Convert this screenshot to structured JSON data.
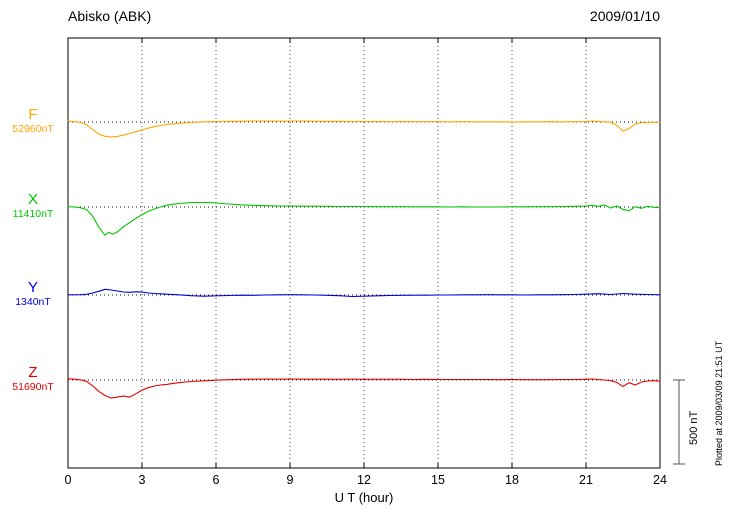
{
  "header": {
    "title": "Abisko (ABK)",
    "date": "2009/01/10"
  },
  "axis": {
    "xlabel": "U T (hour)"
  },
  "scale_bar": {
    "label": "500 nT"
  },
  "footer_note": "Plotted at 2009/03/09 21:51 UT",
  "chart_data": {
    "type": "line",
    "title": "Abisko (ABK)",
    "date": "2009/01/10",
    "xlabel": "U T (hour)",
    "xlim": [
      0,
      24
    ],
    "x_ticks": [
      0,
      3,
      6,
      9,
      12,
      15,
      18,
      21,
      24
    ],
    "grid": "dotted vertical lines every 3 hours; dotted horizontal baseline per channel",
    "legend_position": "left margin channel labels",
    "scale_bar_nT": 500,
    "y_unit": "nT offset from channel baseline",
    "series": [
      {
        "name": "F",
        "baseline_label": "52960nT",
        "baseline_nT": 52960,
        "color": "#FFA500",
        "points": [
          [
            0,
            4
          ],
          [
            0.25,
            3
          ],
          [
            0.5,
            -2
          ],
          [
            0.75,
            -15
          ],
          [
            1,
            -45
          ],
          [
            1.25,
            -72
          ],
          [
            1.5,
            -85
          ],
          [
            1.75,
            -90
          ],
          [
            2,
            -86
          ],
          [
            2.25,
            -78
          ],
          [
            2.5,
            -68
          ],
          [
            2.75,
            -58
          ],
          [
            3,
            -47
          ],
          [
            3.25,
            -37
          ],
          [
            3.5,
            -28
          ],
          [
            3.75,
            -21
          ],
          [
            4,
            -15
          ],
          [
            4.25,
            -11
          ],
          [
            4.5,
            -8
          ],
          [
            4.75,
            -5
          ],
          [
            5,
            -3
          ],
          [
            5.25,
            -1
          ],
          [
            5.5,
            1
          ],
          [
            6,
            3
          ],
          [
            6.5,
            4
          ],
          [
            7,
            5
          ],
          [
            7.5,
            6
          ],
          [
            8,
            6
          ],
          [
            8.5,
            5
          ],
          [
            9,
            6
          ],
          [
            9.5,
            6
          ],
          [
            10,
            5
          ],
          [
            10.5,
            4
          ],
          [
            11,
            4
          ],
          [
            11.5,
            3
          ],
          [
            12,
            3
          ],
          [
            12.5,
            3
          ],
          [
            13,
            2
          ],
          [
            13.5,
            3
          ],
          [
            14,
            2
          ],
          [
            14.5,
            2
          ],
          [
            15,
            2
          ],
          [
            15.5,
            1
          ],
          [
            16,
            2
          ],
          [
            16.5,
            1
          ],
          [
            17,
            1
          ],
          [
            17.5,
            1
          ],
          [
            18,
            0
          ],
          [
            18.5,
            1
          ],
          [
            19,
            1
          ],
          [
            19.5,
            2
          ],
          [
            20,
            1
          ],
          [
            20.5,
            2
          ],
          [
            21,
            3
          ],
          [
            21.25,
            6
          ],
          [
            21.5,
            4
          ],
          [
            21.75,
            1
          ],
          [
            22,
            -2
          ],
          [
            22.25,
            -20
          ],
          [
            22.5,
            -55
          ],
          [
            22.75,
            -38
          ],
          [
            23,
            -12
          ],
          [
            23.25,
            -4
          ],
          [
            23.5,
            -3
          ],
          [
            23.75,
            -1
          ],
          [
            24,
            -3
          ]
        ]
      },
      {
        "name": "X",
        "baseline_label": "11410nT",
        "baseline_nT": 11410,
        "color": "#00C800",
        "points": [
          [
            0,
            2
          ],
          [
            0.25,
            0
          ],
          [
            0.5,
            -4
          ],
          [
            0.75,
            -15
          ],
          [
            1,
            -55
          ],
          [
            1.25,
            -120
          ],
          [
            1.5,
            -168
          ],
          [
            1.65,
            -150
          ],
          [
            1.8,
            -162
          ],
          [
            2,
            -148
          ],
          [
            2.25,
            -118
          ],
          [
            2.5,
            -92
          ],
          [
            2.75,
            -68
          ],
          [
            3,
            -45
          ],
          [
            3.25,
            -26
          ],
          [
            3.5,
            -12
          ],
          [
            3.75,
            0
          ],
          [
            4,
            10
          ],
          [
            4.25,
            16
          ],
          [
            4.5,
            21
          ],
          [
            4.75,
            24
          ],
          [
            5,
            26
          ],
          [
            5.25,
            27
          ],
          [
            5.5,
            27
          ],
          [
            5.75,
            26
          ],
          [
            6,
            24
          ],
          [
            6.25,
            21
          ],
          [
            6.5,
            18
          ],
          [
            7,
            13
          ],
          [
            7.5,
            10
          ],
          [
            8,
            8
          ],
          [
            8.5,
            6
          ],
          [
            9,
            6
          ],
          [
            9.5,
            5
          ],
          [
            10,
            5
          ],
          [
            10.5,
            4
          ],
          [
            11,
            3
          ],
          [
            11.5,
            3
          ],
          [
            12,
            3
          ],
          [
            12.5,
            2
          ],
          [
            13,
            2
          ],
          [
            13.5,
            2
          ],
          [
            14,
            1
          ],
          [
            14.5,
            1
          ],
          [
            15,
            1
          ],
          [
            15.5,
            0
          ],
          [
            16,
            1
          ],
          [
            16.5,
            0
          ],
          [
            17,
            0
          ],
          [
            17.5,
            0
          ],
          [
            18,
            1
          ],
          [
            18.5,
            1
          ],
          [
            19,
            2
          ],
          [
            19.5,
            2
          ],
          [
            20,
            3
          ],
          [
            20.5,
            4
          ],
          [
            21,
            6
          ],
          [
            21.25,
            10
          ],
          [
            21.5,
            4
          ],
          [
            21.75,
            12
          ],
          [
            22,
            -6
          ],
          [
            22.25,
            6
          ],
          [
            22.5,
            -14
          ],
          [
            22.75,
            -22
          ],
          [
            23,
            2
          ],
          [
            23.25,
            -8
          ],
          [
            23.5,
            4
          ],
          [
            23.75,
            -2
          ],
          [
            24,
            -4
          ]
        ]
      },
      {
        "name": "Y",
        "baseline_label": "1340nT",
        "baseline_nT": 1340,
        "color": "#0000DC",
        "points": [
          [
            0,
            1
          ],
          [
            0.5,
            2
          ],
          [
            0.75,
            4
          ],
          [
            1,
            12
          ],
          [
            1.25,
            22
          ],
          [
            1.5,
            34
          ],
          [
            1.75,
            30
          ],
          [
            2,
            24
          ],
          [
            2.25,
            18
          ],
          [
            2.5,
            16
          ],
          [
            2.75,
            19
          ],
          [
            3,
            17
          ],
          [
            3.25,
            12
          ],
          [
            3.5,
            9
          ],
          [
            3.75,
            7
          ],
          [
            4,
            5
          ],
          [
            4.5,
            1
          ],
          [
            5,
            -4
          ],
          [
            5.5,
            -7
          ],
          [
            6,
            -5
          ],
          [
            6.5,
            -3
          ],
          [
            7,
            -1
          ],
          [
            7.5,
            -2
          ],
          [
            8,
            0
          ],
          [
            8.5,
            1
          ],
          [
            9,
            2
          ],
          [
            9.5,
            1
          ],
          [
            10,
            0
          ],
          [
            10.5,
            -2
          ],
          [
            11,
            -4
          ],
          [
            11.5,
            -9
          ],
          [
            12,
            -7
          ],
          [
            12.5,
            -5
          ],
          [
            13,
            -3
          ],
          [
            13.5,
            -2
          ],
          [
            14,
            -1
          ],
          [
            14.5,
            -1
          ],
          [
            15,
            0
          ],
          [
            15.5,
            0
          ],
          [
            16,
            1
          ],
          [
            16.5,
            1
          ],
          [
            17,
            2
          ],
          [
            17.5,
            1
          ],
          [
            18,
            1
          ],
          [
            18.5,
            0
          ],
          [
            19,
            1
          ],
          [
            19.5,
            1
          ],
          [
            20,
            2
          ],
          [
            20.5,
            3
          ],
          [
            21,
            5
          ],
          [
            21.5,
            8
          ],
          [
            22,
            3
          ],
          [
            22.5,
            9
          ],
          [
            23,
            5
          ],
          [
            23.5,
            3
          ],
          [
            24,
            1
          ]
        ]
      },
      {
        "name": "Z",
        "baseline_label": "51690nT",
        "baseline_nT": 51690,
        "color": "#E00000",
        "points": [
          [
            0,
            7
          ],
          [
            0.25,
            5
          ],
          [
            0.5,
            1
          ],
          [
            0.75,
            -8
          ],
          [
            1,
            -35
          ],
          [
            1.25,
            -68
          ],
          [
            1.5,
            -92
          ],
          [
            1.75,
            -108
          ],
          [
            2,
            -102
          ],
          [
            2.25,
            -96
          ],
          [
            2.5,
            -102
          ],
          [
            2.75,
            -82
          ],
          [
            3,
            -60
          ],
          [
            3.25,
            -46
          ],
          [
            3.5,
            -36
          ],
          [
            3.75,
            -30
          ],
          [
            4,
            -26
          ],
          [
            4.25,
            -20
          ],
          [
            4.5,
            -16
          ],
          [
            4.75,
            -12
          ],
          [
            5,
            -9
          ],
          [
            5.5,
            -5
          ],
          [
            6,
            -1
          ],
          [
            6.5,
            2
          ],
          [
            7,
            4
          ],
          [
            7.5,
            5
          ],
          [
            8,
            6
          ],
          [
            8.5,
            5
          ],
          [
            9,
            6
          ],
          [
            9.5,
            5
          ],
          [
            10,
            5
          ],
          [
            10.5,
            5
          ],
          [
            11,
            4
          ],
          [
            11.5,
            5
          ],
          [
            12,
            4
          ],
          [
            12.5,
            4
          ],
          [
            13,
            4
          ],
          [
            13.5,
            4
          ],
          [
            14,
            3
          ],
          [
            14.5,
            4
          ],
          [
            15,
            3
          ],
          [
            15.5,
            3
          ],
          [
            16,
            3
          ],
          [
            16.5,
            3
          ],
          [
            17,
            3
          ],
          [
            17.5,
            2
          ],
          [
            18,
            3
          ],
          [
            18.5,
            2
          ],
          [
            19,
            2
          ],
          [
            19.5,
            2
          ],
          [
            20,
            3
          ],
          [
            20.5,
            3
          ],
          [
            21,
            4
          ],
          [
            21.25,
            6
          ],
          [
            21.5,
            3
          ],
          [
            21.75,
            0
          ],
          [
            22,
            -4
          ],
          [
            22.25,
            -14
          ],
          [
            22.5,
            -38
          ],
          [
            22.75,
            -16
          ],
          [
            23,
            -30
          ],
          [
            23.25,
            -12
          ],
          [
            23.5,
            -6
          ],
          [
            23.75,
            -4
          ],
          [
            24,
            -7
          ]
        ]
      }
    ]
  }
}
